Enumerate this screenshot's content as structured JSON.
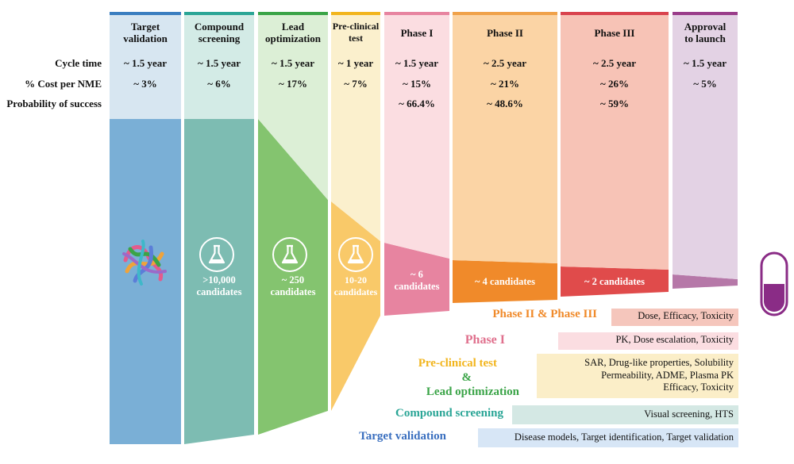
{
  "row_labels": {
    "cycle_time": "Cycle time",
    "cost": "% Cost per NME",
    "probability": "Probability of success"
  },
  "stages": [
    {
      "name": "Target validation",
      "title_lines": [
        "Target",
        "validation"
      ],
      "cycle": "~ 1.5 year",
      "cost": "~ 3%",
      "prob": "",
      "color": "#7aafd6",
      "tint": "#d7e6f1",
      "bar": "#3a7ec0",
      "candidates": []
    },
    {
      "name": "Compound screening",
      "title_lines": [
        "Compound",
        "screening"
      ],
      "cycle": "~ 1.5 year",
      "cost": "~ 6%",
      "prob": "",
      "color": "#7dbcb2",
      "tint": "#d3ebe6",
      "bar": "#2aa596",
      "candidates": [
        ">10,000",
        "candidates"
      ]
    },
    {
      "name": "Lead optimization",
      "title_lines": [
        "Lead",
        "optimization"
      ],
      "cycle": "~ 1.5 year",
      "cost": "~ 17%",
      "prob": "",
      "color": "#84c46f",
      "tint": "#dcefd6",
      "bar": "#3aa447",
      "candidates": [
        "~ 250",
        "candidates"
      ]
    },
    {
      "name": "Pre-clinical test",
      "title_lines": [
        "Pre-clinical",
        "test"
      ],
      "cycle": "~ 1 year",
      "cost": "~ 7%",
      "prob": "",
      "color": "#f9c969",
      "tint": "#fbf0cd",
      "bar": "#f2b51d",
      "candidates": [
        "10-20",
        "candidates"
      ]
    },
    {
      "name": "Phase I",
      "title_lines": [
        "Phase I"
      ],
      "cycle": "~ 1.5 year",
      "cost": "~ 15%",
      "prob": "~ 66.4%",
      "color": "#ee9eac",
      "tint": "#fbdde1",
      "bar": "#e784a0",
      "candidates": [
        "~ 6",
        "candidates"
      ]
    },
    {
      "name": "Phase II",
      "title_lines": [
        "Phase II"
      ],
      "cycle": "~ 2.5 year",
      "cost": "~ 21%",
      "prob": "~ 48.6%",
      "color": "#f08a2a",
      "tint": "#fbd4a5",
      "bar": "#f0a24a",
      "candidates": [
        "~ 4 candidates"
      ]
    },
    {
      "name": "Phase III",
      "title_lines": [
        "Phase III"
      ],
      "cycle": "~ 2.5 year",
      "cost": "~ 26%",
      "prob": "~ 59%",
      "color": "#e04b4b",
      "tint": "#f7c3b6",
      "bar": "#d9434e",
      "candidates": [
        "~ 2 candidates"
      ]
    },
    {
      "name": "Approval to launch",
      "title_lines": [
        "Approval",
        "to launch"
      ],
      "cycle": "~ 1.5 year",
      "cost": "~ 5%",
      "prob": "",
      "color": "#b678a8",
      "tint": "#e3d2e4",
      "bar": "#9a3d8a",
      "candidates": []
    }
  ],
  "legend": [
    {
      "title": "Phase II & Phase III",
      "title_color": "#f08a2a",
      "box_color": "#f5c6bc",
      "lines": [
        "Dose, Efficacy, Toxicity"
      ]
    },
    {
      "title": "Phase I",
      "title_color": "#e0708d",
      "box_color": "#fbdde1",
      "lines": [
        "PK, Dose escalation, Toxicity"
      ]
    },
    {
      "title_lines": [
        "Pre-clinical test",
        "&",
        "Lead optimization"
      ],
      "title_colors": [
        "#f2b51d",
        "#3aa447",
        "#3aa447"
      ],
      "box_color": "#fbeec8",
      "lines": [
        "SAR, Drug-like properties, Solubility",
        "Permeability, ADME, Plasma PK",
        "Efficacy, Toxicity"
      ]
    },
    {
      "title": "Compound screening",
      "title_color": "#2aa596",
      "box_color": "#d4e8e4",
      "lines": [
        "Visual screening, HTS"
      ]
    },
    {
      "title": "Target validation",
      "title_color": "#3a6fbf",
      "box_color": "#d7e6f6",
      "lines": [
        "Disease models, Target identification, Target validation"
      ]
    }
  ],
  "icons": {
    "protein": "protein-structure-icon",
    "flask": "flask-icon",
    "capsule": "capsule-icon"
  }
}
